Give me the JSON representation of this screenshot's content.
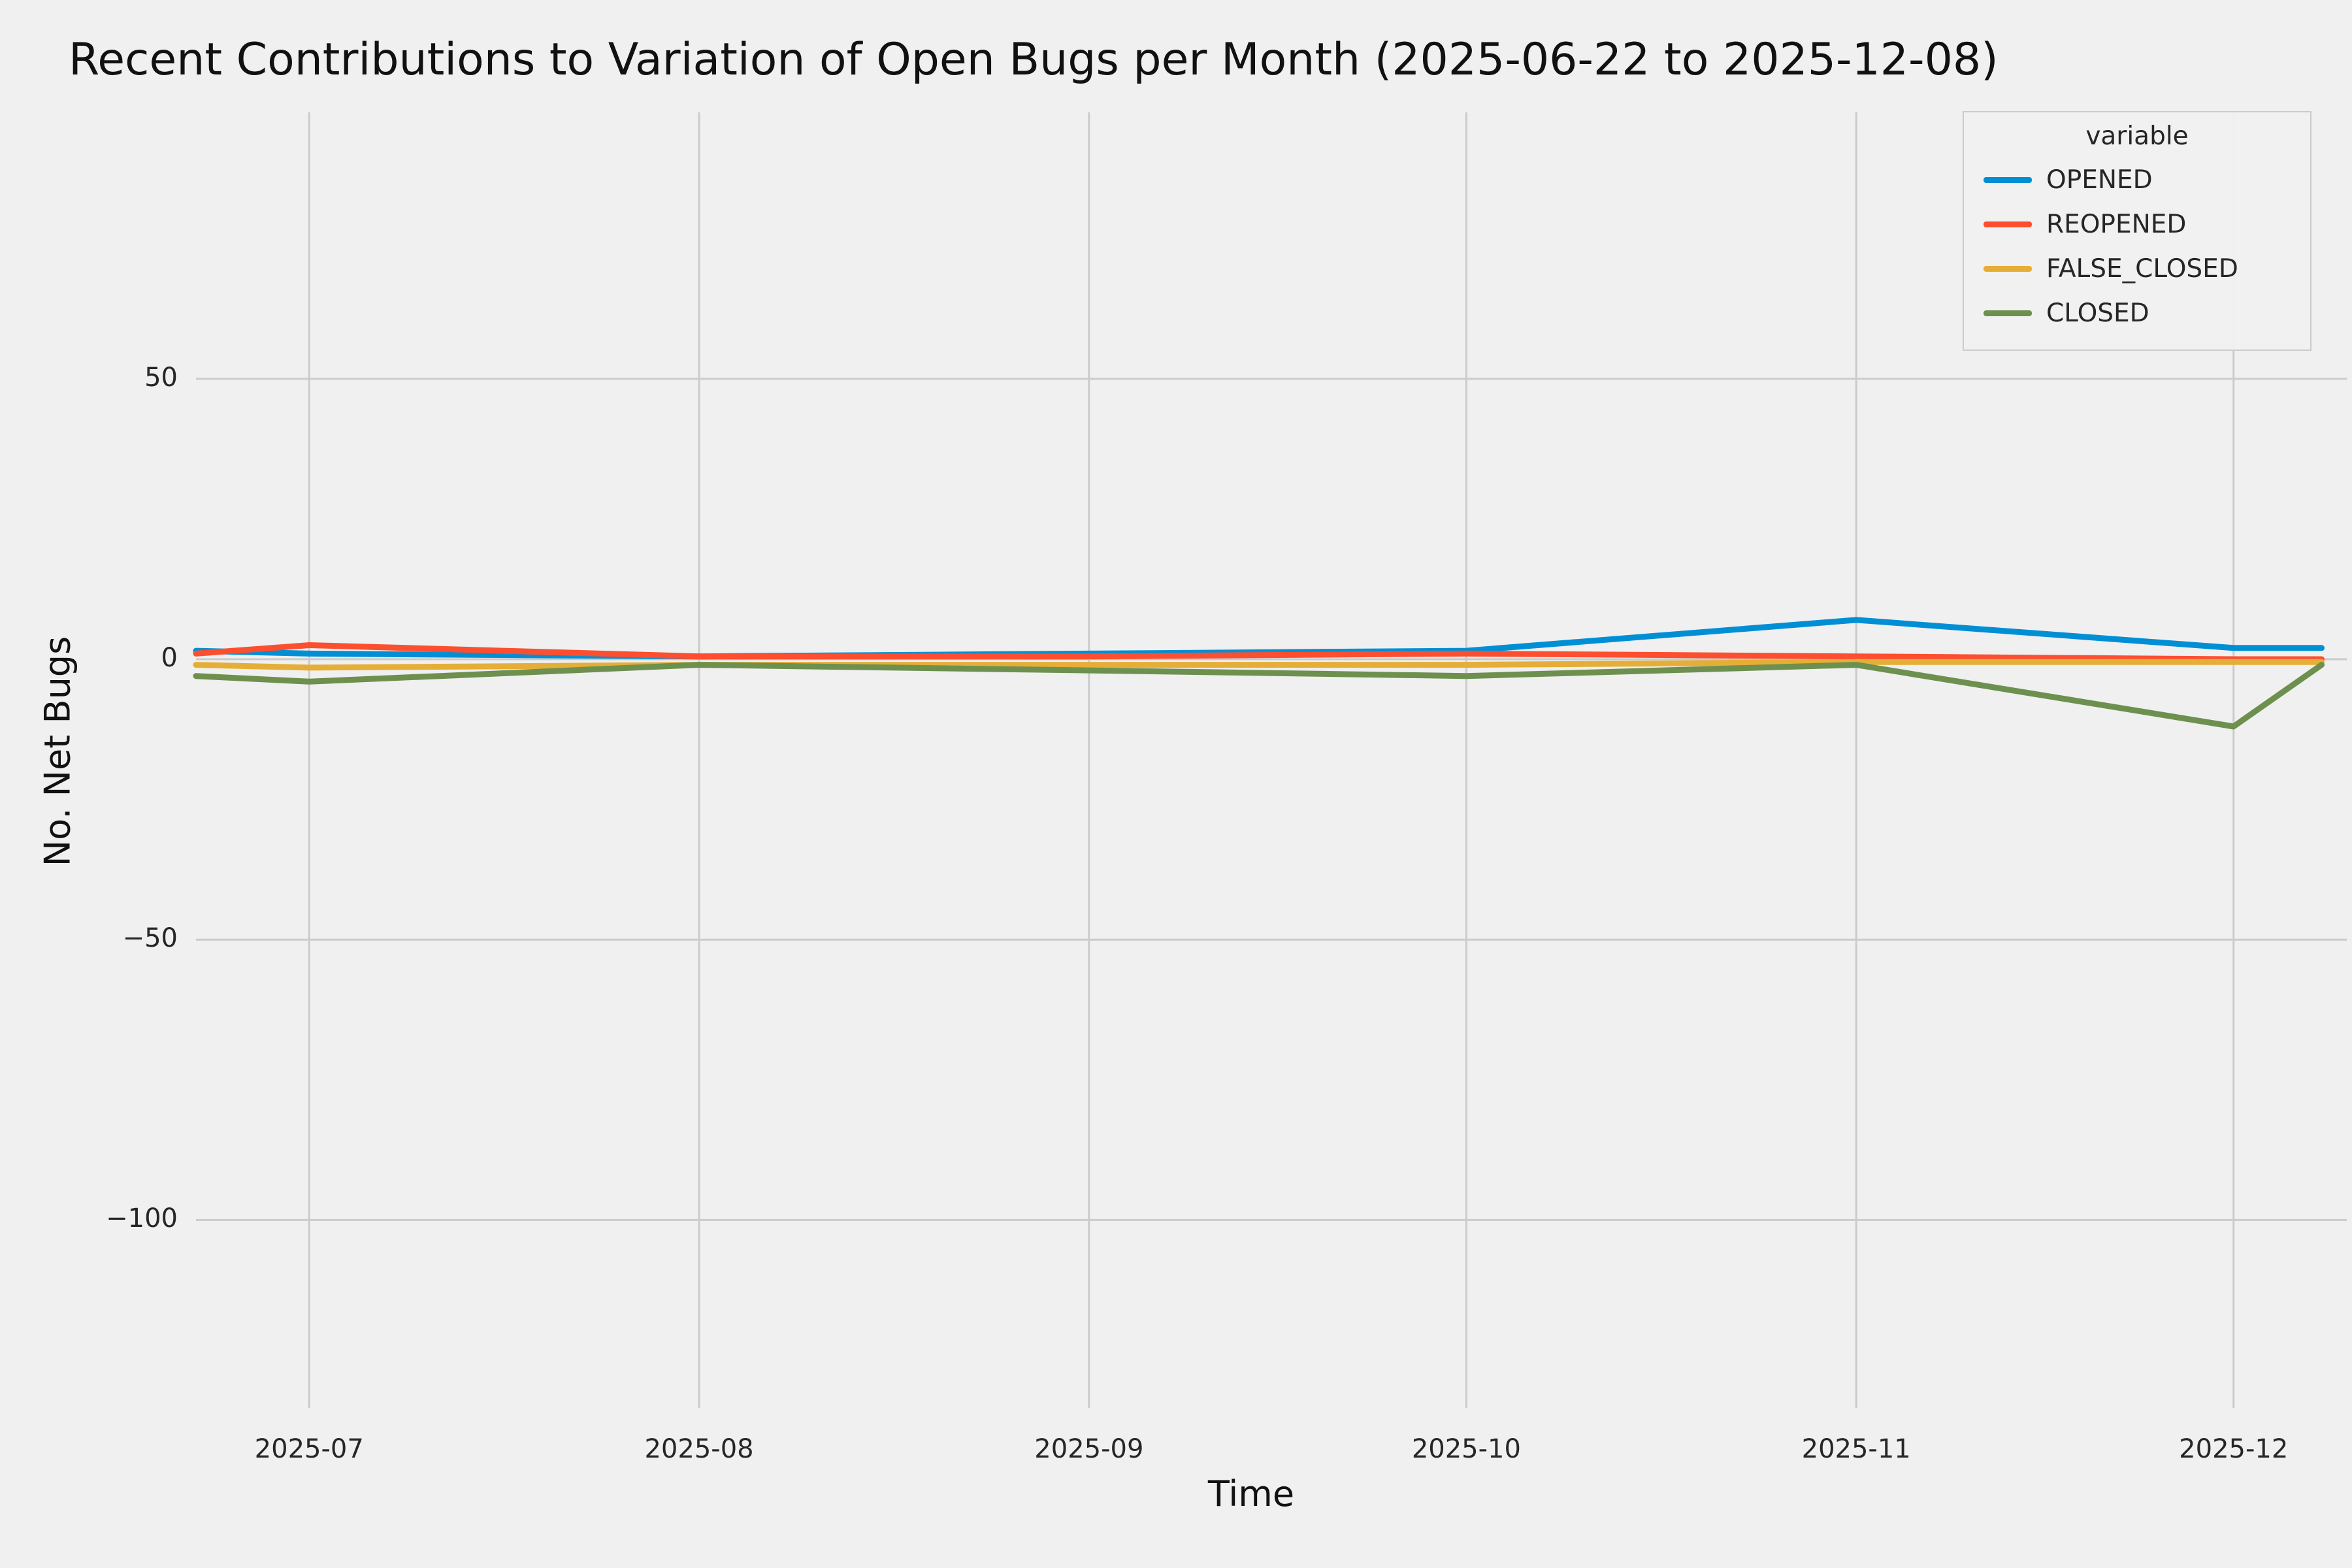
{
  "chart_data": {
    "type": "line",
    "title": "Recent Contributions to Variation of Open Bugs per Month (2025-06-22 to 2025-12-08)",
    "xlabel": "Time",
    "ylabel": "No. Net Bugs",
    "legend_title": "variable",
    "legend_position": "upper right",
    "grid": true,
    "background_color": "#f0f0f0",
    "grid_color": "#cbcbcb",
    "x": [
      "2025-06-22",
      "2025-07-01",
      "2025-08-01",
      "2025-09-01",
      "2025-10-01",
      "2025-11-01",
      "2025-12-01",
      "2025-12-08"
    ],
    "series": [
      {
        "name": "OPENED",
        "color": "#008fd5",
        "values": [
          1.5,
          1,
          0.5,
          1,
          1.5,
          7,
          2,
          2
        ]
      },
      {
        "name": "REOPENED",
        "color": "#fc4f30",
        "values": [
          1,
          2.5,
          0.5,
          0.5,
          1,
          0.5,
          0,
          0
        ]
      },
      {
        "name": "FALSE_CLOSED",
        "color": "#e5ae38",
        "values": [
          -1,
          -1.5,
          -1,
          -1,
          -1,
          -0.5,
          -0.5,
          -0.5
        ]
      },
      {
        "name": "CLOSED",
        "color": "#6d904f",
        "values": [
          -3,
          -4,
          -1,
          -2,
          -3,
          -1,
          -12,
          -1
        ]
      }
    ],
    "x_domain": [
      "2025-06-22",
      "2025-12-10"
    ],
    "y_domain": [
      -133.5,
      97.5
    ],
    "x_ticks": [
      {
        "date": "2025-07-01",
        "label": "2025-07"
      },
      {
        "date": "2025-08-01",
        "label": "2025-08"
      },
      {
        "date": "2025-09-01",
        "label": "2025-09"
      },
      {
        "date": "2025-10-01",
        "label": "2025-10"
      },
      {
        "date": "2025-11-01",
        "label": "2025-11"
      },
      {
        "date": "2025-12-01",
        "label": "2025-12"
      }
    ],
    "y_ticks": [
      {
        "value": 50,
        "label": "50"
      },
      {
        "value": 0,
        "label": "0"
      },
      {
        "value": -50,
        "label": "−50"
      },
      {
        "value": -100,
        "label": "−100"
      }
    ]
  }
}
